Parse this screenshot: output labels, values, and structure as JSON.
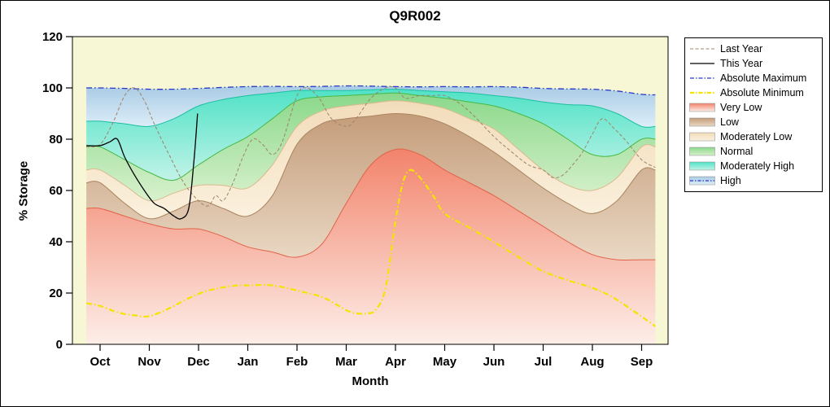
{
  "title": "Q9R002",
  "axes": {
    "y_label": "% Storage",
    "x_label": "Month",
    "y_ticks": [
      0,
      20,
      40,
      60,
      80,
      100,
      120
    ]
  },
  "colors": {
    "background": "#ffffff",
    "plot_bg": "#f7f7d6",
    "frame": "#000000"
  },
  "chart_data": {
    "type": "area",
    "title": "Q9R002",
    "xlabel": "Month",
    "ylabel": "% Storage",
    "ylim": [
      0,
      120
    ],
    "grid": false,
    "legend_position": "right",
    "categories": [
      "Oct",
      "Nov",
      "Dec",
      "Jan",
      "Feb",
      "Mar",
      "Apr",
      "May",
      "Jun",
      "Jul",
      "Aug",
      "Sep"
    ],
    "x_fractions": [
      0,
      0.5,
      1,
      1.5,
      2,
      2.5,
      3,
      3.5,
      4,
      4.5,
      5,
      5.5,
      6,
      6.5,
      7,
      7.5,
      8,
      8.5,
      9,
      9.5,
      10,
      10.5,
      11
    ],
    "bands": [
      {
        "name": "Very Low",
        "color_top": "#f2836b",
        "color_bottom": "#fdeee8",
        "edge_color": "#e06448",
        "top": [
          53,
          50,
          47,
          45,
          45,
          42,
          38,
          36,
          34,
          39,
          55,
          70,
          76,
          74,
          68,
          63,
          58,
          52,
          46,
          40,
          35,
          33,
          33
        ]
      },
      {
        "name": "Low",
        "color_top": "#c49c7a",
        "color_bottom": "#ead8c4",
        "edge_color": "#aa855f",
        "top": [
          63,
          55,
          49,
          52,
          56,
          53,
          50,
          58,
          78,
          86,
          88,
          89,
          90,
          89,
          86,
          81,
          75,
          68,
          61,
          55,
          51,
          56,
          68
        ]
      },
      {
        "name": "Moderately Low",
        "color_top": "#f2dcba",
        "color_bottom": "#fbf1de",
        "edge_color": "#d9ba8e",
        "top": [
          68,
          62,
          56,
          59,
          62,
          62,
          61,
          70,
          85,
          91,
          93,
          94,
          95,
          94,
          92,
          88,
          84,
          76,
          68,
          62,
          60,
          65,
          77
        ]
      },
      {
        "name": "Normal",
        "color_top": "#8ad88a",
        "color_bottom": "#d8f1cd",
        "edge_color": "#46b946",
        "top": [
          77,
          72,
          67,
          64,
          70,
          76,
          81,
          88,
          95,
          96.5,
          97,
          97.5,
          98,
          97,
          96,
          94.5,
          93,
          90,
          86,
          80,
          74,
          74,
          80
        ]
      },
      {
        "name": "Moderately High",
        "color_top": "#50e2c6",
        "color_bottom": "#c2f3e8",
        "edge_color": "#1bbfa0",
        "top": [
          87,
          86,
          85,
          88,
          93,
          95.5,
          97,
          98,
          99,
          99,
          99,
          99.3,
          99.5,
          99,
          98.5,
          98,
          97,
          96,
          94.5,
          93.5,
          93,
          90,
          85
        ]
      },
      {
        "name": "High",
        "color_top": "#a9cbe5",
        "color_bottom": "#ddeef8",
        "edge_color": "",
        "top": [
          100,
          99.8,
          99.5,
          99.5,
          99.8,
          100.2,
          100.5,
          100.6,
          100.5,
          100.6,
          100.8,
          100.7,
          100.5,
          100.4,
          100.5,
          100.4,
          100.5,
          100.3,
          99.8,
          99.6,
          99.5,
          98.8,
          97.5
        ]
      }
    ],
    "lines": [
      {
        "name": "Absolute Maximum",
        "color": "#2838c8",
        "dash": "7 3 1.5 3",
        "width": 1.3,
        "points": [
          [
            -0.28,
            100
          ],
          [
            0,
            100
          ],
          [
            0.5,
            99.8
          ],
          [
            1,
            99.5
          ],
          [
            1.5,
            99.5
          ],
          [
            2,
            99.8
          ],
          [
            2.5,
            100.2
          ],
          [
            3,
            100.5
          ],
          [
            3.5,
            100.6
          ],
          [
            4,
            100.5
          ],
          [
            4.5,
            100.6
          ],
          [
            5,
            100.8
          ],
          [
            5.5,
            100.7
          ],
          [
            6,
            100.5
          ],
          [
            6.5,
            100.4
          ],
          [
            7,
            100.5
          ],
          [
            7.5,
            100.4
          ],
          [
            8,
            100.5
          ],
          [
            8.5,
            100.3
          ],
          [
            9,
            99.8
          ],
          [
            9.5,
            99.6
          ],
          [
            10,
            99.5
          ],
          [
            10.5,
            98.8
          ],
          [
            11,
            97.5
          ],
          [
            11.28,
            97.3
          ]
        ]
      },
      {
        "name": "Absolute Minimum",
        "color": "#f4e400",
        "dash": "7 3 1.5 3",
        "width": 2.2,
        "points": [
          [
            -0.28,
            16
          ],
          [
            0,
            15
          ],
          [
            0.35,
            12.5
          ],
          [
            0.7,
            11.3
          ],
          [
            1,
            11
          ],
          [
            1.4,
            14
          ],
          [
            1.8,
            18
          ],
          [
            2.2,
            21
          ],
          [
            2.7,
            22.8
          ],
          [
            3,
            23
          ],
          [
            3.5,
            23
          ],
          [
            4,
            21
          ],
          [
            4.5,
            18.5
          ],
          [
            4.8,
            15.5
          ],
          [
            5.1,
            12.5
          ],
          [
            5.4,
            12
          ],
          [
            5.6,
            13.5
          ],
          [
            5.8,
            22
          ],
          [
            6,
            48
          ],
          [
            6.15,
            63
          ],
          [
            6.3,
            68
          ],
          [
            6.5,
            65
          ],
          [
            6.8,
            57
          ],
          [
            7,
            51
          ],
          [
            7.5,
            45.5
          ],
          [
            8,
            40
          ],
          [
            8.5,
            34
          ],
          [
            9,
            28.5
          ],
          [
            9.5,
            25
          ],
          [
            10,
            22
          ],
          [
            10.4,
            18.5
          ],
          [
            10.8,
            13.5
          ],
          [
            11.1,
            9.5
          ],
          [
            11.28,
            7
          ]
        ]
      },
      {
        "name": "Last Year",
        "color": "#9e8468",
        "dash": "4 2.5",
        "width": 1,
        "points": [
          [
            -0.28,
            77
          ],
          [
            0,
            78
          ],
          [
            0.25,
            86
          ],
          [
            0.5,
            97
          ],
          [
            0.7,
            100
          ],
          [
            0.9,
            95
          ],
          [
            1.1,
            86
          ],
          [
            1.4,
            74
          ],
          [
            1.7,
            63
          ],
          [
            2,
            56
          ],
          [
            2.2,
            54
          ],
          [
            2.35,
            58
          ],
          [
            2.5,
            56
          ],
          [
            2.7,
            63
          ],
          [
            2.9,
            73
          ],
          [
            3.1,
            80
          ],
          [
            3.3,
            78
          ],
          [
            3.5,
            74
          ],
          [
            3.7,
            79
          ],
          [
            4,
            97
          ],
          [
            4.2,
            100
          ],
          [
            4.45,
            96
          ],
          [
            4.7,
            88
          ],
          [
            5,
            85
          ],
          [
            5.2,
            88
          ],
          [
            5.5,
            96
          ],
          [
            5.8,
            100
          ],
          [
            6,
            100
          ],
          [
            6.2,
            96
          ],
          [
            6.5,
            97
          ],
          [
            6.8,
            97
          ],
          [
            7,
            97
          ],
          [
            7.3,
            94
          ],
          [
            7.6,
            89
          ],
          [
            8,
            81
          ],
          [
            8.3,
            76
          ],
          [
            8.7,
            70
          ],
          [
            9,
            68
          ],
          [
            9.2,
            65
          ],
          [
            9.4,
            66
          ],
          [
            9.6,
            70
          ],
          [
            9.8,
            75
          ],
          [
            10,
            82
          ],
          [
            10.2,
            88
          ],
          [
            10.45,
            84
          ],
          [
            10.7,
            79
          ],
          [
            11,
            72
          ],
          [
            11.28,
            69
          ]
        ]
      },
      {
        "name": "This Year",
        "color": "#000000",
        "dash": "",
        "width": 1.3,
        "points": [
          [
            -0.28,
            77.5
          ],
          [
            0,
            77.5
          ],
          [
            0.2,
            79
          ],
          [
            0.35,
            80
          ],
          [
            0.5,
            73
          ],
          [
            0.7,
            66
          ],
          [
            0.9,
            60
          ],
          [
            1.1,
            55
          ],
          [
            1.3,
            53
          ],
          [
            1.5,
            50
          ],
          [
            1.65,
            49
          ],
          [
            1.8,
            53
          ],
          [
            1.9,
            70
          ],
          [
            1.98,
            90
          ]
        ]
      }
    ]
  },
  "legend": {
    "items": [
      {
        "label": "Last Year",
        "sample": "line",
        "color": "#9e8468",
        "dash": "4 2.5",
        "width": 1
      },
      {
        "label": "This Year",
        "sample": "line",
        "color": "#000000",
        "dash": "",
        "width": 1.3
      },
      {
        "label": "Absolute Maximum",
        "sample": "line",
        "color": "#2838c8",
        "dash": "5 2 1.5 2",
        "width": 1.3
      },
      {
        "label": "Absolute Minimum",
        "sample": "line",
        "color": "#f4e400",
        "dash": "5 2 1.5 2",
        "width": 2.2
      },
      {
        "label": "Very Low",
        "sample": "band",
        "color_top": "#f2836b",
        "color_bottom": "#fdeee8"
      },
      {
        "label": "Low",
        "sample": "band",
        "color_top": "#c49c7a",
        "color_bottom": "#ead8c4"
      },
      {
        "label": "Moderately Low",
        "sample": "band",
        "color_top": "#f2dcba",
        "color_bottom": "#fbf1de"
      },
      {
        "label": "Normal",
        "sample": "band",
        "color_top": "#8ad88a",
        "color_bottom": "#d8f1cd"
      },
      {
        "label": "Moderately High",
        "sample": "band",
        "color_top": "#50e2c6",
        "color_bottom": "#c2f3e8"
      },
      {
        "label": "High",
        "sample": "band-line",
        "color_top": "#a9cbe5",
        "color_bottom": "#ddeef8",
        "color": "#2838c8",
        "dash": "4 2 1.5 2",
        "width": 1.2
      }
    ]
  }
}
